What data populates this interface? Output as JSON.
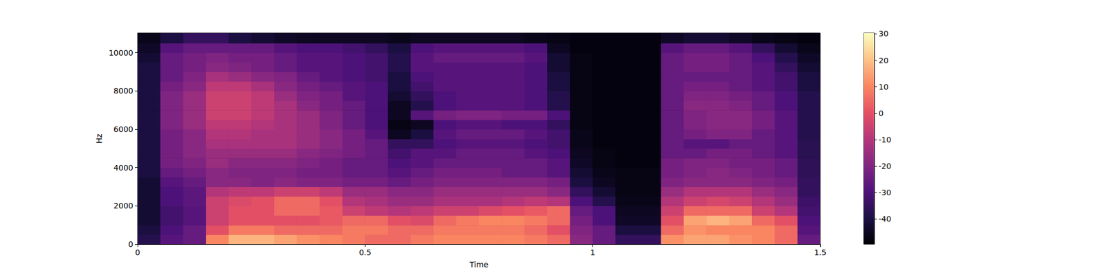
{
  "chart_data": {
    "type": "heatmap",
    "xlabel": "Time",
    "ylabel": "Hz",
    "xlim": [
      0,
      1.5
    ],
    "xticks": [
      0,
      0.5,
      1,
      1.5
    ],
    "ylim": [
      0,
      11025
    ],
    "yticks": [
      0,
      2000,
      4000,
      6000,
      8000,
      10000
    ],
    "color": "magma",
    "colorbar": {
      "lim": [
        -49.5,
        30.3
      ],
      "ticks": [
        30,
        20,
        10,
        0,
        -10,
        -20,
        -30,
        -40
      ]
    },
    "x_bins": [
      0,
      0.05,
      0.1,
      0.15,
      0.2,
      0.25,
      0.3,
      0.35,
      0.4,
      0.45,
      0.5,
      0.55,
      0.6,
      0.65,
      0.7,
      0.75,
      0.8,
      0.85,
      0.9,
      0.95,
      1,
      1.05,
      1.1,
      1.15,
      1.2,
      1.25,
      1.3,
      1.35,
      1.4,
      1.45,
      1.5
    ],
    "y_bins": [
      0,
      500,
      1000,
      1500,
      2000,
      2500,
      3000,
      3500,
      4000,
      4500,
      5000,
      5500,
      6000,
      6500,
      7000,
      7500,
      8000,
      8500,
      9000,
      9500,
      10000,
      10500,
      11025
    ],
    "z": [
      [
        -38,
        -28,
        -25,
        10,
        18,
        18,
        15,
        12,
        10,
        8,
        5,
        5,
        8,
        10,
        10,
        10,
        10,
        8,
        5,
        -18,
        -25,
        -35,
        -35,
        12,
        15,
        15,
        12,
        10,
        5,
        -25
      ],
      [
        -40,
        -30,
        -25,
        0,
        8,
        8,
        5,
        5,
        5,
        8,
        8,
        5,
        5,
        8,
        8,
        8,
        8,
        5,
        0,
        -20,
        -25,
        -40,
        -40,
        5,
        12,
        10,
        10,
        10,
        5,
        -28
      ],
      [
        -42,
        -32,
        -28,
        -5,
        0,
        0,
        0,
        0,
        2,
        5,
        5,
        0,
        -2,
        5,
        8,
        10,
        10,
        8,
        5,
        -22,
        -30,
        -44,
        -44,
        0,
        15,
        18,
        15,
        5,
        0,
        -30
      ],
      [
        -42,
        -32,
        -28,
        -5,
        0,
        0,
        5,
        5,
        2,
        -5,
        -8,
        -10,
        -8,
        -5,
        -5,
        -2,
        0,
        2,
        5,
        -25,
        -30,
        -45,
        -45,
        -5,
        5,
        5,
        5,
        -5,
        -10,
        -32
      ],
      [
        -42,
        -30,
        -27,
        -5,
        -2,
        0,
        5,
        5,
        0,
        -10,
        -12,
        -15,
        -15,
        -12,
        -12,
        -12,
        -10,
        -8,
        -10,
        -30,
        -38,
        -46,
        -46,
        -10,
        -5,
        -3,
        -5,
        -10,
        -15,
        -33
      ],
      [
        -42,
        -30,
        -27,
        -10,
        -8,
        -8,
        -5,
        -5,
        -8,
        -15,
        -15,
        -18,
        -18,
        -15,
        -15,
        -15,
        -15,
        -15,
        -18,
        -35,
        -42,
        -47,
        -47,
        -15,
        -10,
        -10,
        -10,
        -15,
        -18,
        -35
      ],
      [
        -42,
        -28,
        -25,
        -18,
        -18,
        -20,
        -18,
        -20,
        -20,
        -22,
        -22,
        -25,
        -22,
        -20,
        -20,
        -20,
        -20,
        -20,
        -22,
        -40,
        -45,
        -47,
        -47,
        -20,
        -18,
        -18,
        -18,
        -20,
        -22,
        -35
      ],
      [
        -40,
        -25,
        -22,
        -18,
        -20,
        -20,
        -20,
        -22,
        -22,
        -25,
        -25,
        -28,
        -25,
        -22,
        -22,
        -22,
        -25,
        -25,
        -28,
        -42,
        -46,
        -47,
        -47,
        -22,
        -20,
        -18,
        -20,
        -22,
        -25,
        -36
      ],
      [
        -40,
        -22,
        -20,
        -15,
        -18,
        -18,
        -18,
        -20,
        -22,
        -25,
        -25,
        -30,
        -28,
        -25,
        -25,
        -25,
        -25,
        -25,
        -28,
        -44,
        -47,
        -48,
        -48,
        -22,
        -20,
        -20,
        -22,
        -22,
        -25,
        -36
      ],
      [
        -40,
        -22,
        -18,
        -15,
        -15,
        -15,
        -15,
        -18,
        -20,
        -22,
        -25,
        -32,
        -28,
        -28,
        -25,
        -25,
        -25,
        -28,
        -30,
        -45,
        -47,
        -48,
        -48,
        -25,
        -25,
        -22,
        -22,
        -25,
        -28,
        -37
      ],
      [
        -40,
        -22,
        -18,
        -12,
        -12,
        -12,
        -12,
        -15,
        -18,
        -22,
        -25,
        -35,
        -35,
        -30,
        -28,
        -28,
        -28,
        -30,
        -32,
        -46,
        -48,
        -48,
        -48,
        -25,
        -28,
        -28,
        -25,
        -25,
        -28,
        -37
      ],
      [
        -40,
        -22,
        -18,
        -10,
        -10,
        -12,
        -12,
        -15,
        -18,
        -22,
        -28,
        -45,
        -40,
        -28,
        -25,
        -25,
        -25,
        -28,
        -32,
        -46,
        -48,
        -48,
        -48,
        -25,
        -22,
        -20,
        -20,
        -25,
        -28,
        -38
      ],
      [
        -40,
        -20,
        -15,
        -8,
        -8,
        -10,
        -12,
        -15,
        -20,
        -25,
        -30,
        -47,
        -45,
        -30,
        -28,
        -28,
        -30,
        -30,
        -35,
        -47,
        -48,
        -48,
        -48,
        -25,
        -20,
        -18,
        -18,
        -22,
        -28,
        -38
      ],
      [
        -40,
        -20,
        -15,
        -5,
        -5,
        -8,
        -12,
        -15,
        -20,
        -25,
        -30,
        -45,
        -28,
        -22,
        -20,
        -20,
        -22,
        -22,
        -30,
        -47,
        -48,
        -48,
        -48,
        -25,
        -20,
        -18,
        -18,
        -22,
        -28,
        -38
      ],
      [
        -40,
        -20,
        -15,
        -5,
        -5,
        -8,
        -12,
        -18,
        -22,
        -25,
        -30,
        -45,
        -38,
        -30,
        -28,
        -28,
        -28,
        -30,
        -38,
        -47,
        -48,
        -48,
        -48,
        -25,
        -18,
        -18,
        -20,
        -25,
        -30,
        -38
      ],
      [
        -40,
        -20,
        -15,
        -5,
        -5,
        -8,
        -15,
        -20,
        -22,
        -28,
        -30,
        -42,
        -35,
        -30,
        -28,
        -28,
        -28,
        -30,
        -38,
        -47,
        -48,
        -48,
        -48,
        -25,
        -20,
        -20,
        -22,
        -25,
        -30,
        -38
      ],
      [
        -40,
        -22,
        -18,
        -8,
        -8,
        -12,
        -18,
        -22,
        -25,
        -28,
        -30,
        -40,
        -32,
        -28,
        -28,
        -28,
        -28,
        -30,
        -40,
        -47,
        -48,
        -48,
        -48,
        -25,
        -22,
        -22,
        -25,
        -28,
        -32,
        -40
      ],
      [
        -40,
        -25,
        -20,
        -12,
        -15,
        -18,
        -20,
        -25,
        -28,
        -30,
        -32,
        -40,
        -30,
        -28,
        -28,
        -28,
        -28,
        -30,
        -40,
        -47,
        -48,
        -48,
        -48,
        -25,
        -25,
        -25,
        -25,
        -28,
        -32,
        -40
      ],
      [
        -40,
        -25,
        -22,
        -18,
        -20,
        -22,
        -25,
        -28,
        -28,
        -30,
        -32,
        -38,
        -28,
        -28,
        -28,
        -28,
        -28,
        -30,
        -42,
        -47,
        -48,
        -48,
        -48,
        -25,
        -22,
        -22,
        -25,
        -28,
        -35,
        -42
      ],
      [
        -42,
        -25,
        -22,
        -20,
        -22,
        -22,
        -25,
        -28,
        -28,
        -30,
        -32,
        -38,
        -28,
        -25,
        -25,
        -25,
        -25,
        -28,
        -42,
        -47,
        -48,
        -48,
        -48,
        -25,
        -22,
        -22,
        -25,
        -30,
        -38,
        -44
      ],
      [
        -44,
        -28,
        -25,
        -25,
        -25,
        -25,
        -28,
        -30,
        -30,
        -32,
        -35,
        -40,
        -30,
        -28,
        -28,
        -28,
        -28,
        -30,
        -45,
        -48,
        -48,
        -48,
        -48,
        -28,
        -25,
        -25,
        -28,
        -35,
        -42,
        -46
      ],
      [
        -46,
        -40,
        -35,
        -35,
        -40,
        -42,
        -44,
        -45,
        -45,
        -45,
        -45,
        -46,
        -45,
        -45,
        -45,
        -45,
        -45,
        -46,
        -47,
        -48,
        -48,
        -48,
        -48,
        -44,
        -42,
        -42,
        -44,
        -46,
        -47,
        -48
      ]
    ]
  }
}
